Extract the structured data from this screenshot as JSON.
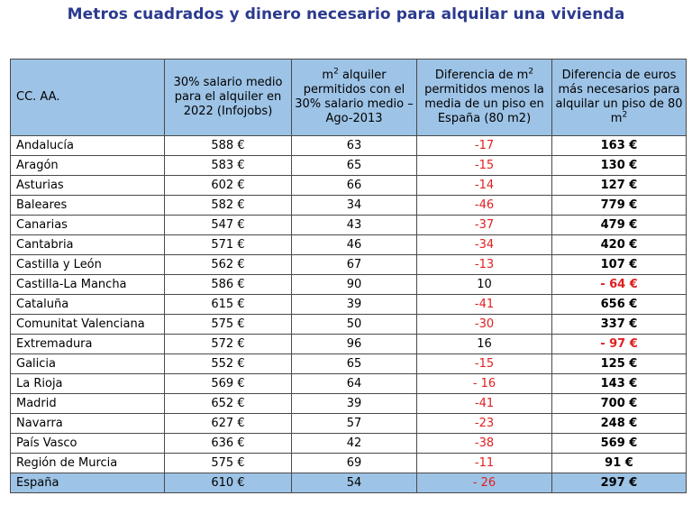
{
  "title": "Metros cuadrados y dinero necesario para alquilar una vivienda",
  "table": {
    "headers": {
      "region": "CC. AA.",
      "salary": "30% salario medio para el alquiler en 2022 (Infojobs)",
      "m2_pre": "m",
      "m2_sup": "2",
      "m2_post": " alquiler permitidos con el 30% salario medio – Ago-2013",
      "diff_pre": "Diferencia de m",
      "diff_sup": "2",
      "diff_post": " permitidos menos la media de un piso en España (80 m2)",
      "euros_pre": "Diferencia de euros más necesarios para alquilar un piso de 80 m",
      "euros_sup": "2"
    },
    "rows": [
      {
        "region": "Andalucía",
        "salary": "588 €",
        "m2": "63",
        "diff": "-17",
        "euros": "163 €"
      },
      {
        "region": "Aragón",
        "salary": "583 €",
        "m2": "65",
        "diff": "-15",
        "euros": "130 €"
      },
      {
        "region": "Asturias",
        "salary": "602 €",
        "m2": "66",
        "diff": "-14",
        "euros": "127 €"
      },
      {
        "region": "Baleares",
        "salary": "582 €",
        "m2": "34",
        "diff": "-46",
        "euros": "779 €"
      },
      {
        "region": "Canarias",
        "salary": "547 €",
        "m2": "43",
        "diff": "-37",
        "euros": "479 €"
      },
      {
        "region": "Cantabria",
        "salary": "571 €",
        "m2": "46",
        "diff": "-34",
        "euros": "420 €"
      },
      {
        "region": "Castilla y León",
        "salary": "562 €",
        "m2": "67",
        "diff": "-13",
        "euros": "107 €"
      },
      {
        "region": "Castilla-La Mancha",
        "salary": "586 €",
        "m2": "90",
        "diff": "10",
        "euros": "- 64 €"
      },
      {
        "region": "Cataluña",
        "salary": "615 €",
        "m2": "39",
        "diff": "-41",
        "euros": "656 €"
      },
      {
        "region": "Comunitat Valenciana",
        "salary": "575 €",
        "m2": "50",
        "diff": "-30",
        "euros": "337 €"
      },
      {
        "region": "Extremadura",
        "salary": "572 €",
        "m2": "96",
        "diff": "16",
        "euros": "- 97 €"
      },
      {
        "region": "Galicia",
        "salary": "552 €",
        "m2": "65",
        "diff": "-15",
        "euros": "125 €"
      },
      {
        "region": "La Rioja",
        "salary": "569 €",
        "m2": "64",
        "diff": "- 16",
        "euros": "143 €"
      },
      {
        "region": "Madrid",
        "salary": "652 €",
        "m2": "39",
        "diff": "-41",
        "euros": "700 €"
      },
      {
        "region": "Navarra",
        "salary": "627 €",
        "m2": "57",
        "diff": "-23",
        "euros": "248 €"
      },
      {
        "region": "País Vasco",
        "salary": "636 €",
        "m2": "42",
        "diff": "-38",
        "euros": "569 €"
      },
      {
        "region": "Región de Murcia",
        "salary": "575 €",
        "m2": "69",
        "diff": "-11",
        "euros": "91 €"
      },
      {
        "region": "España",
        "salary": "610 €",
        "m2": "54",
        "diff": "- 26",
        "euros": "297 €"
      }
    ]
  },
  "colors": {
    "title": "#2b3a8f",
    "header_bg": "#9dc3e6",
    "negative": "#e02020"
  }
}
